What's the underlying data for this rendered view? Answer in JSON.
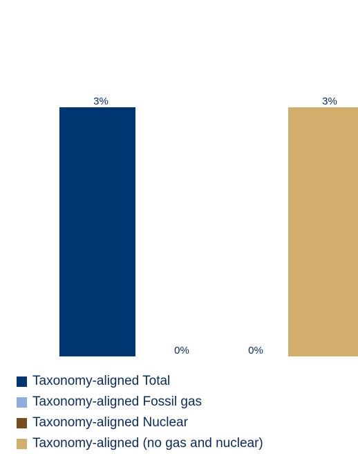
{
  "chart_data": {
    "type": "bar",
    "categories": [
      "Taxonomy-aligned Total",
      "Taxonomy-aligned Fossil gas",
      "Taxonomy-aligned Nuclear",
      "Taxonomy-aligned (no gas and nuclear)"
    ],
    "values": [
      3,
      0,
      0,
      3
    ],
    "value_labels": [
      "3%",
      "0%",
      "0%",
      "3%"
    ],
    "colors": [
      "#003671",
      "#8cadde",
      "#784c1e",
      "#d1ae6c"
    ],
    "unit": "%",
    "ylim": [
      0,
      3
    ],
    "grid": false,
    "axes_visible": false,
    "legend_position": "bottom-left"
  },
  "legend": {
    "items": [
      {
        "label": "Taxonomy-aligned Total",
        "color": "#003671"
      },
      {
        "label": "Taxonomy-aligned Fossil gas",
        "color": "#8cadde"
      },
      {
        "label": "Taxonomy-aligned Nuclear",
        "color": "#784c1e"
      },
      {
        "label": "Taxonomy-aligned (no gas and nuclear)",
        "color": "#d1ae6c"
      }
    ]
  }
}
